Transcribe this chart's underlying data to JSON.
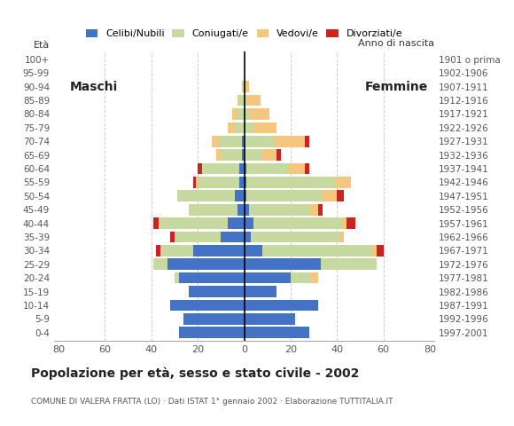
{
  "age_groups": [
    "0-4",
    "5-9",
    "10-14",
    "15-19",
    "20-24",
    "25-29",
    "30-34",
    "35-39",
    "40-44",
    "45-49",
    "50-54",
    "55-59",
    "60-64",
    "65-69",
    "70-74",
    "75-79",
    "80-84",
    "85-89",
    "90-94",
    "95-99",
    "100+"
  ],
  "birth_years": [
    "1997-2001",
    "1992-1996",
    "1987-1991",
    "1982-1986",
    "1977-1981",
    "1972-1976",
    "1967-1971",
    "1962-1966",
    "1957-1961",
    "1952-1956",
    "1947-1951",
    "1942-1946",
    "1937-1941",
    "1932-1936",
    "1927-1931",
    "1922-1926",
    "1917-1921",
    "1912-1916",
    "1907-1911",
    "1902-1906",
    "1901 o prima"
  ],
  "males_celibi": [
    28,
    26,
    32,
    24,
    28,
    33,
    22,
    10,
    7,
    3,
    4,
    2,
    2,
    1,
    1,
    0,
    0,
    0,
    0,
    0,
    0
  ],
  "males_coniugati": [
    0,
    0,
    0,
    0,
    2,
    6,
    14,
    20,
    30,
    21,
    25,
    18,
    16,
    9,
    10,
    4,
    3,
    2,
    1,
    0,
    0
  ],
  "males_vedovi": [
    0,
    0,
    0,
    0,
    0,
    0,
    0,
    0,
    0,
    0,
    0,
    1,
    0,
    2,
    3,
    3,
    2,
    1,
    0,
    0,
    0
  ],
  "males_divorziati": [
    0,
    0,
    0,
    0,
    0,
    0,
    2,
    2,
    2,
    0,
    0,
    1,
    2,
    0,
    0,
    0,
    0,
    0,
    0,
    0,
    0
  ],
  "females_nubili": [
    28,
    22,
    32,
    14,
    20,
    33,
    8,
    3,
    4,
    2,
    1,
    1,
    1,
    0,
    0,
    0,
    0,
    0,
    0,
    0,
    0
  ],
  "females_coniugate": [
    0,
    0,
    0,
    0,
    8,
    24,
    47,
    38,
    38,
    26,
    33,
    38,
    18,
    8,
    13,
    4,
    2,
    1,
    0,
    0,
    0
  ],
  "females_vedove": [
    0,
    0,
    0,
    0,
    4,
    0,
    2,
    2,
    2,
    4,
    6,
    7,
    7,
    6,
    13,
    10,
    9,
    6,
    2,
    0,
    0
  ],
  "females_divorziate": [
    0,
    0,
    0,
    0,
    0,
    0,
    3,
    0,
    4,
    2,
    3,
    0,
    2,
    2,
    2,
    0,
    0,
    0,
    0,
    0,
    0
  ],
  "color_celibi": "#4472c4",
  "color_coniugati": "#c5d9a0",
  "color_vedovi": "#f5c77e",
  "color_divorziati": "#cc2222",
  "title": "Popolazione per età, sesso e stato civile - 2002",
  "subtitle": "COMUNE DI VALERA FRATTA (LO) · Dati ISTAT 1° gennaio 2002 · Elaborazione TUTTITALIA.IT",
  "label_eta": "Età",
  "label_anno": "Anno di nascita",
  "label_maschi": "Maschi",
  "label_femmine": "Femmine",
  "legend_labels": [
    "Celibi/Nubili",
    "Coniugati/e",
    "Vedovi/e",
    "Divorziati/e"
  ],
  "xlim": 82,
  "bg_color": "#ffffff",
  "grid_color": "#cccccc"
}
